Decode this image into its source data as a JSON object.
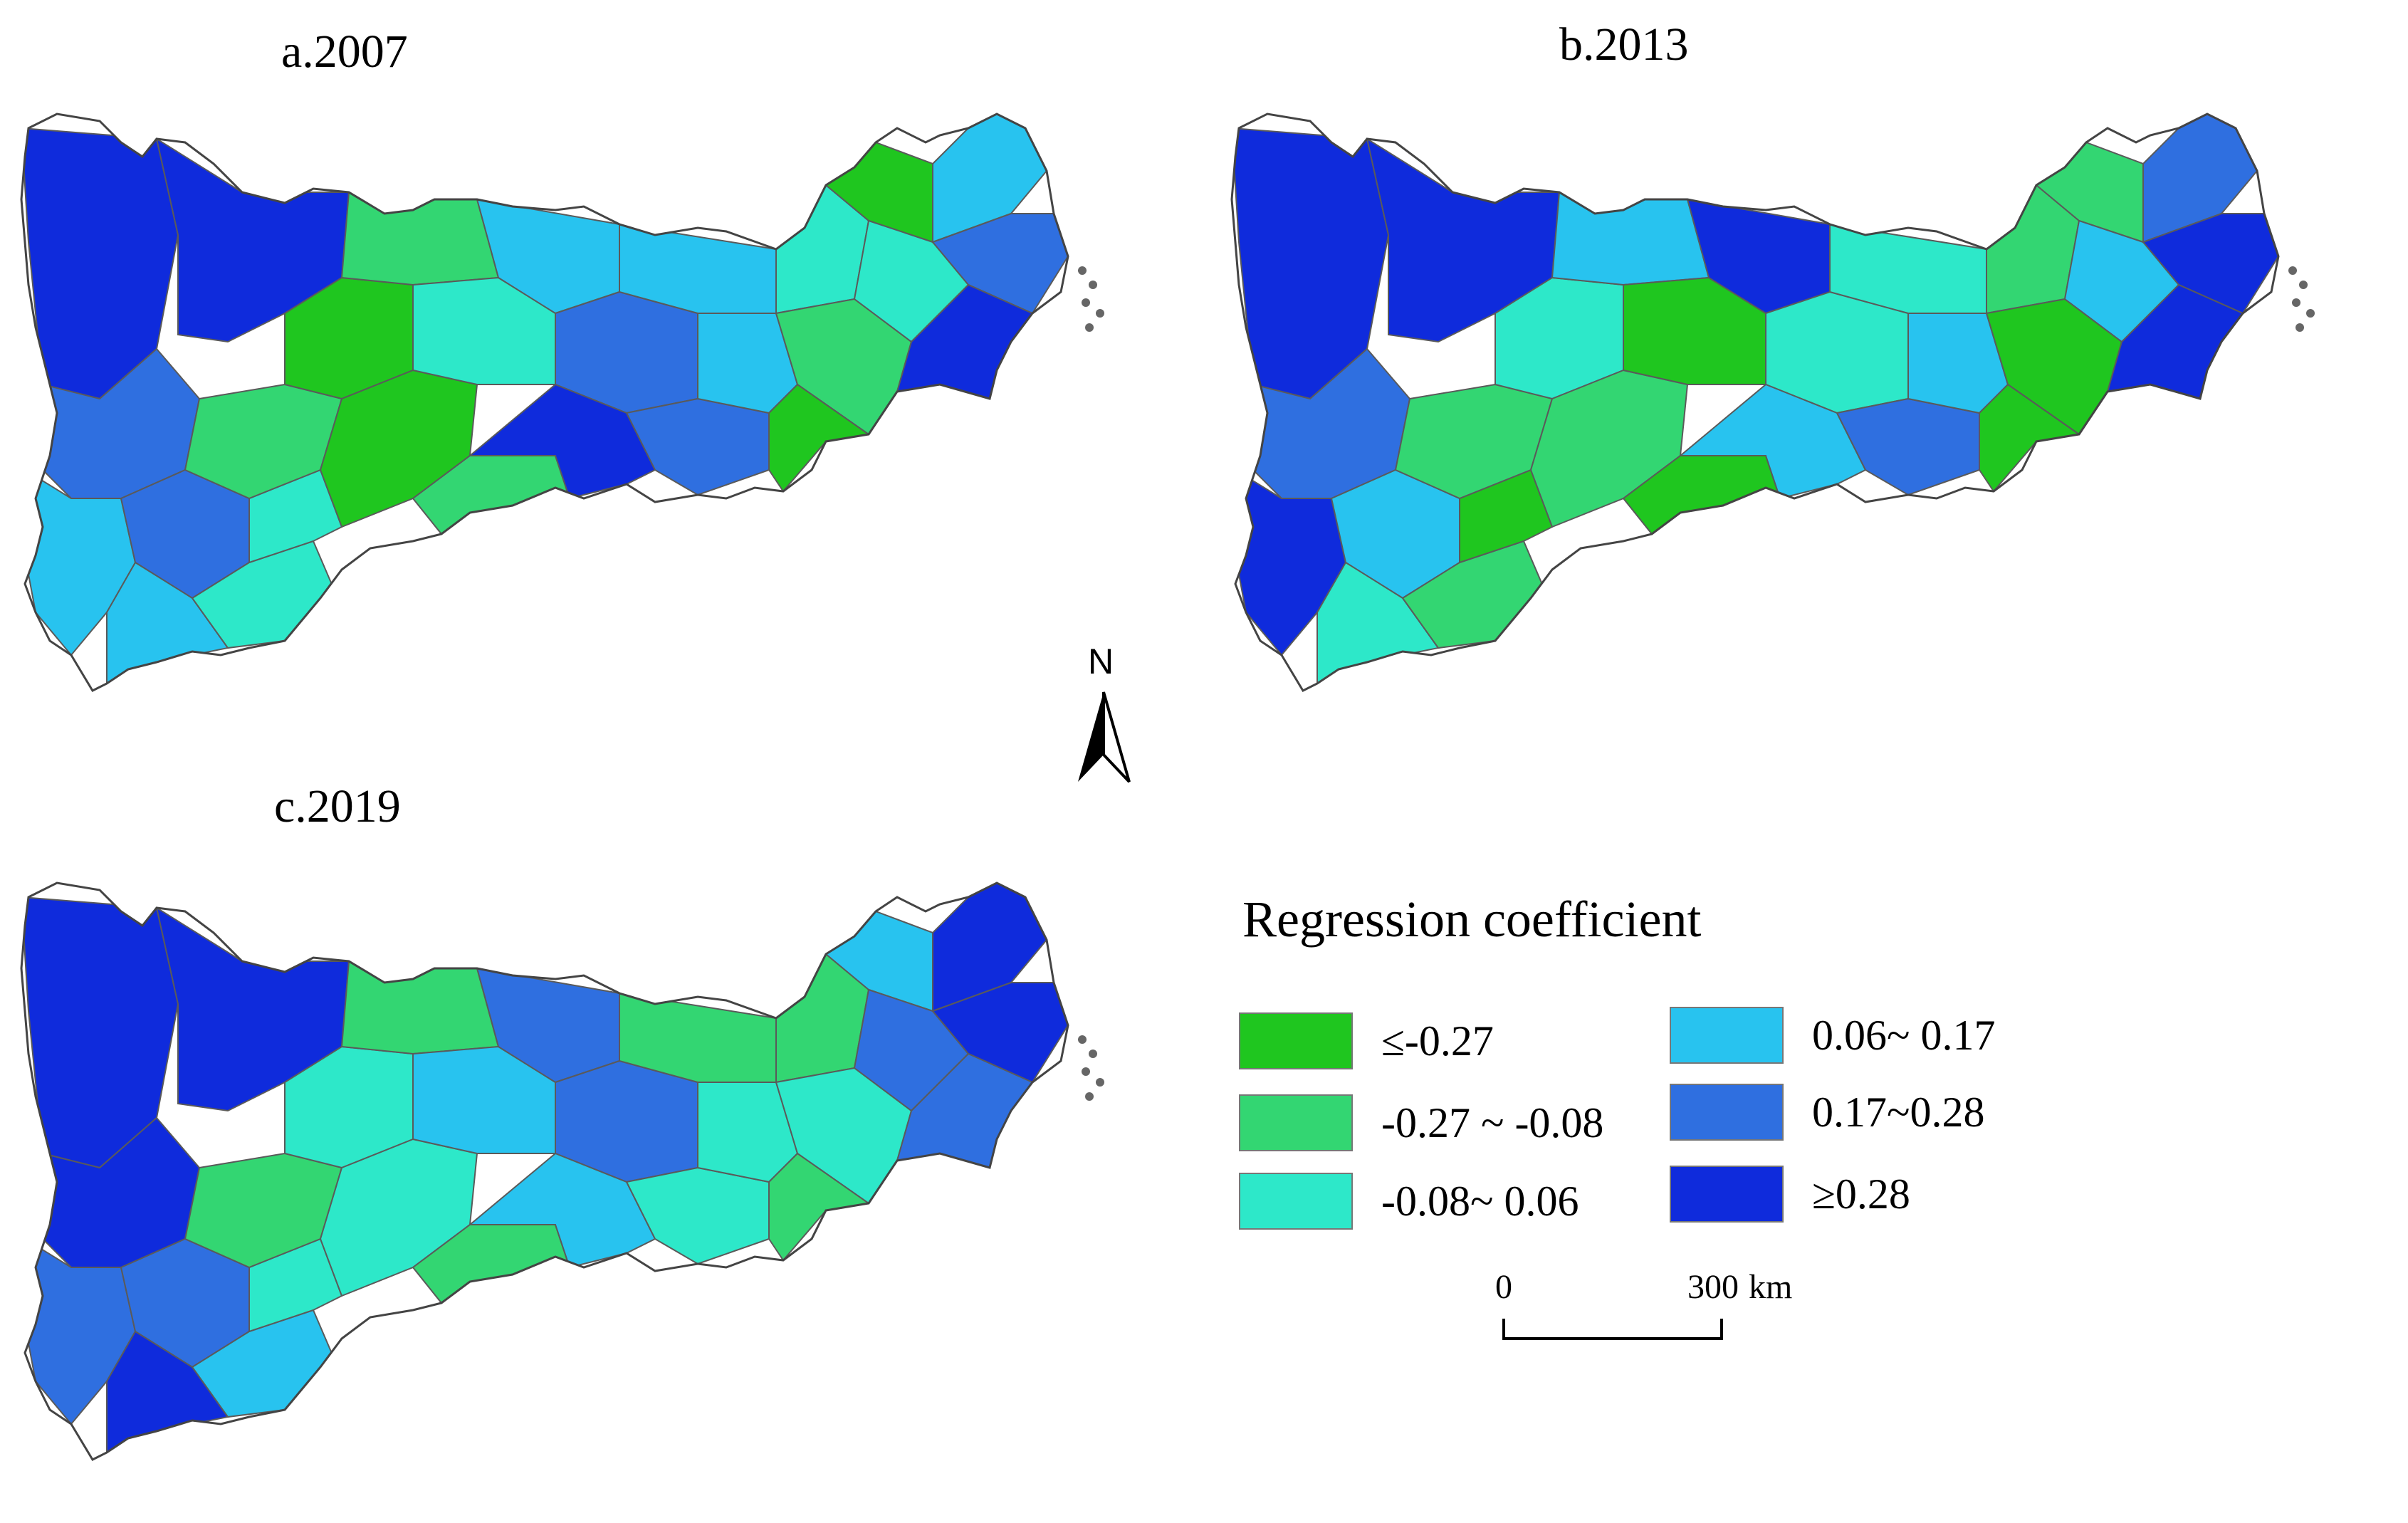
{
  "panels": [
    {
      "id": "a",
      "title": "a.2007"
    },
    {
      "id": "b",
      "title": "b.2013"
    },
    {
      "id": "c",
      "title": "c.2019"
    }
  ],
  "legend": {
    "title": "Regression coefficient",
    "classes": [
      {
        "label": "≤-0.27",
        "color": "#1fc61f"
      },
      {
        "label": "-0.27 ~ -0.08",
        "color": "#33d672"
      },
      {
        "label": "-0.08~ 0.06",
        "color": "#2de8c9"
      },
      {
        "label": "0.06~ 0.17",
        "color": "#28c3ef"
      },
      {
        "label": "0.17~0.28",
        "color": "#2f6fe0"
      },
      {
        "label": "≥0.28",
        "color": "#0f2bdc"
      }
    ]
  },
  "scale_bar": {
    "start_label": "0",
    "end_label": "300",
    "unit": "km"
  },
  "north_arrow": {
    "label": "N"
  },
  "region_classes": {
    "a": [
      "c6",
      "c6",
      "c5",
      "c4",
      "c5",
      "c4",
      "c3",
      "c3",
      "c2",
      "c1",
      "c2",
      "c1",
      "c2",
      "c3",
      "c4",
      "c5",
      "c6",
      "c5",
      "c4",
      "c4",
      "c3",
      "c2",
      "c1",
      "c1",
      "c3",
      "c4",
      "c5",
      "c6"
    ],
    "b": [
      "c6",
      "c6",
      "c5",
      "c6",
      "c4",
      "c3",
      "c2",
      "c1",
      "c2",
      "c3",
      "c4",
      "c2",
      "c1",
      "c1",
      "c6",
      "c3",
      "c4",
      "c5",
      "c4",
      "c3",
      "c2",
      "c1",
      "c1",
      "c2",
      "c4",
      "c5",
      "c6",
      "c6"
    ],
    "c": [
      "c6",
      "c6",
      "c6",
      "c5",
      "c5",
      "c6",
      "c4",
      "c3",
      "c2",
      "c3",
      "c2",
      "c3",
      "c2",
      "c4",
      "c5",
      "c5",
      "c4",
      "c3",
      "c3",
      "c2",
      "c2",
      "c3",
      "c2",
      "c4",
      "c5",
      "c6",
      "c6",
      "c5"
    ]
  }
}
